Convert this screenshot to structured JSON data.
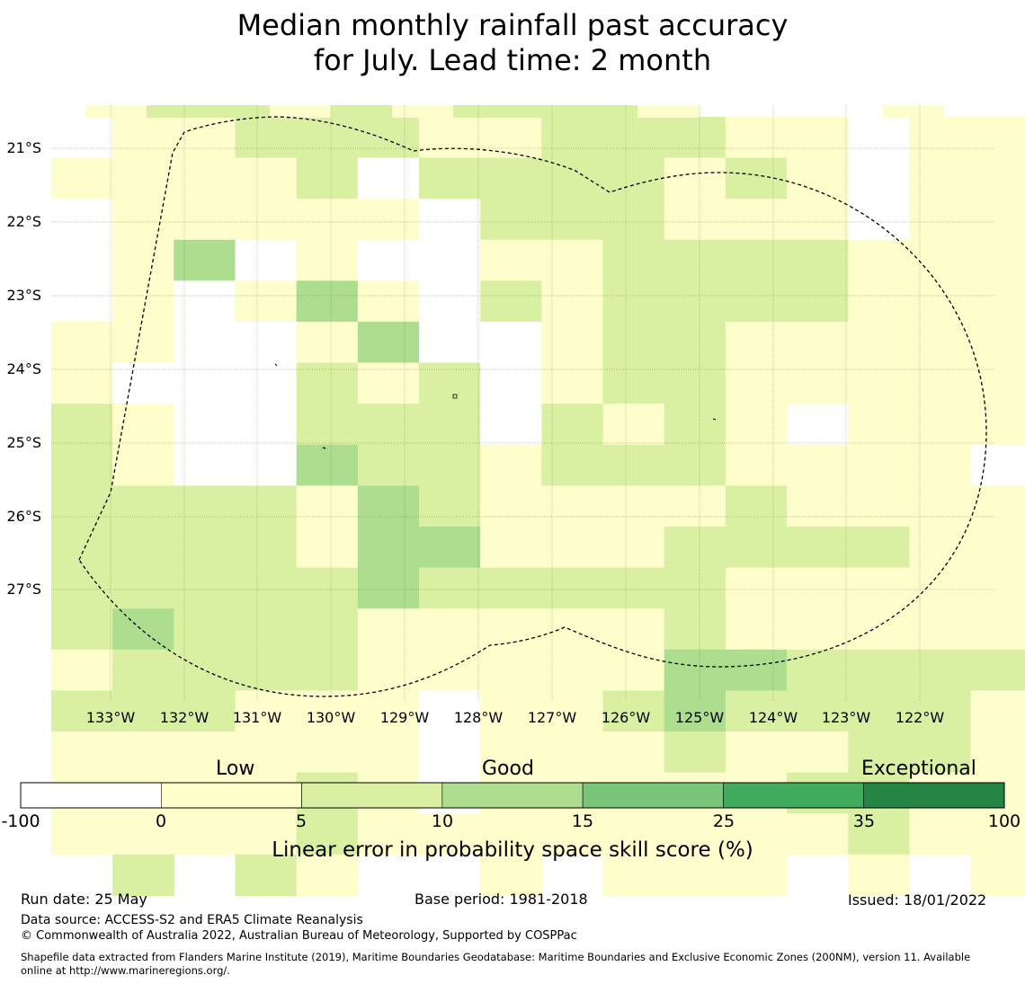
{
  "title": {
    "line1": "Median monthly rainfall past accuracy",
    "line2": "for July. Lead time: 2 month"
  },
  "map": {
    "lat_labels": [
      "21°S",
      "22°S",
      "23°S",
      "24°S",
      "25°S",
      "26°S",
      "27°S"
    ],
    "lon_labels": [
      "133°W",
      "132°W",
      "131°W",
      "130°W",
      "129°W",
      "128°W",
      "127°W",
      "126°W",
      "125°W",
      "124°W",
      "123°W",
      "122°W"
    ],
    "lon_range": [
      -133.8,
      -121.0
    ],
    "lat_range": [
      -28.5,
      -20.4
    ],
    "cell_size_deg": 0.83,
    "grid_rows_legend": "each character is a cell classed by skill score band: 0 = below 0, 1 = 0-5, 2 = 5-10, 3 = 10-15, . = outside the gridded area",
    "grid_rows": [
      ".112221122211011.",
      "11112022221210111",
      "01111102221110111",
      "01301001122221111",
      "01013102122221110",
      "11001300122111111",
      "10002120122111111",
      "21002220212101110",
      "21003221222111100",
      "22221321111211111",
      "22221331112222111",
      "22222322222111111",
      "23222111112111111",
      "12222111113322222",
      "22211101123222212",
      "11111101112112211",
      "11112101111122111",
      "11112111111112110",
      ".2.21..1.111.1.11"
    ],
    "grid_colors": {
      "0": "#ffffff",
      "1": "#fefecc",
      "2": "#d9f0a3",
      "3": "#addd8e"
    }
  },
  "colorbar": {
    "categories": [
      "Low",
      "Good",
      "Exceptional"
    ],
    "ticks": [
      "-100",
      "0",
      "5",
      "10",
      "15",
      "25",
      "35",
      "100"
    ],
    "colors": [
      "#ffffff",
      "#ffffcc",
      "#d9f0a3",
      "#addd8e",
      "#78c679",
      "#41ab5d",
      "#238443"
    ],
    "label": "Linear error in probability space skill score (%)"
  },
  "footer": {
    "run_date": "Run date: 25 May",
    "base_period": "Base period: 1981-2018",
    "issued": "Issued: 18/01/2022",
    "data_source": "Data source: ACCESS-S2 and ERA5 Climate Reanalysis",
    "copyright": "© Commonwealth of Australia 2022, Australian Bureau of Meteorology, Supported by COSPPac",
    "shapefile_line1": "Shapefile data extracted from Flanders Marine Institute (2019), Maritime Boundaries Geodatabase: Maritime Boundaries and Exclusive Economic Zones (200NM), version 11. Available",
    "shapefile_line2": "online at http://www.marineregions.org/."
  }
}
